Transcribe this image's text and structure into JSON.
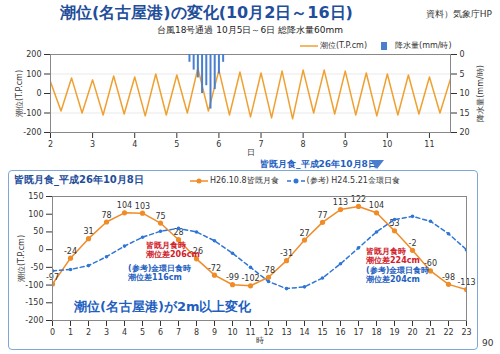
{
  "title": "潮位(名古屋港)の変化(10月2日～16日)",
  "source": "資料）気象庁HP",
  "page_number": "90",
  "chart_data": [
    {
      "type": "line",
      "subtitle": "台風18号通過 10月5日～6日 総降水量60mm",
      "x_label": "日",
      "y_label": "潮位(T.P.cm)",
      "y2_label": "降水量(mm/時)",
      "xlim": [
        2,
        11.5
      ],
      "xticks": [
        2,
        3,
        4,
        5,
        6,
        7,
        8,
        9,
        10,
        11
      ],
      "ylim": [
        -200,
        200
      ],
      "yticks": [
        -200,
        -100,
        0,
        100,
        200
      ],
      "y2lim": [
        20,
        0
      ],
      "y2ticks": [
        0,
        5,
        10,
        15,
        20
      ],
      "grid": true,
      "legend": "top-right",
      "annotations": [
        "皆既月食_平成26年10月8日"
      ],
      "series": [
        {
          "name": "潮位(T.P.cm)",
          "color": "#f0a030",
          "type": "line",
          "x": [
            2,
            2.25,
            2.5,
            2.75,
            3,
            3.25,
            3.5,
            3.75,
            4,
            4.25,
            4.5,
            4.75,
            5,
            5.25,
            5.5,
            5.75,
            6,
            6.25,
            6.5,
            6.75,
            7,
            7.25,
            7.5,
            7.75,
            8,
            8.25,
            8.5,
            8.75,
            9,
            9.25,
            9.5,
            9.75,
            10,
            10.25,
            10.5,
            10.75,
            11,
            11.25,
            11.5
          ],
          "values": [
            60,
            -90,
            80,
            -100,
            70,
            -110,
            90,
            -105,
            85,
            -115,
            100,
            -110,
            95,
            -100,
            130,
            -90,
            120,
            -110,
            110,
            -120,
            105,
            -125,
            115,
            -130,
            120,
            -100,
            120,
            -105,
            115,
            -110,
            105,
            -115,
            100,
            -110,
            95,
            -105,
            85,
            -100,
            75
          ]
        },
        {
          "name": "降水量(mm/時)",
          "color": "#4a7fd0",
          "type": "bar",
          "axis": "y2",
          "x": [
            5.3,
            5.4,
            5.5,
            5.6,
            5.7,
            5.8,
            5.9,
            6.0,
            6.1
          ],
          "values": [
            2,
            4,
            6,
            10,
            8,
            14,
            9,
            5,
            2
          ]
        }
      ]
    },
    {
      "type": "line",
      "title": "皆既月食_平成26年10月8日",
      "x_label": "時",
      "y_label": "潮位(T.P.cm)",
      "x": [
        0,
        1,
        2,
        3,
        4,
        5,
        6,
        7,
        8,
        9,
        10,
        11,
        12,
        13,
        14,
        15,
        16,
        17,
        18,
        19,
        20,
        21,
        22,
        23
      ],
      "xlim": [
        0,
        23
      ],
      "xticks": [
        0,
        1,
        2,
        3,
        4,
        5,
        6,
        7,
        8,
        9,
        10,
        11,
        12,
        13,
        14,
        15,
        16,
        17,
        18,
        19,
        20,
        21,
        22,
        23
      ],
      "ylim": [
        -200,
        150
      ],
      "yticks": [
        -200,
        -150,
        -100,
        -50,
        0,
        50,
        100,
        150
      ],
      "grid": false,
      "legend": "top",
      "annotations": [
        "皆既月食時\n潮位差206cm",
        "(参考)金環日食時\n潮位差116cm",
        "皆既月食時\n潮位差224cm",
        "(参考)金環日食時\n潮位差204cm",
        "潮位(名古屋港)が2m以上変化"
      ],
      "series": [
        {
          "name": "H26.10.8皆既月食",
          "color": "#f08c28",
          "marker": "circle",
          "line_style": "solid",
          "data_labels": true,
          "values": [
            -97,
            -24,
            31,
            78,
            104,
            103,
            75,
            28,
            -26,
            -72,
            -99,
            -102,
            -78,
            -31,
            27,
            77,
            113,
            122,
            104,
            53,
            -2,
            -60,
            -98,
            -113
          ]
        },
        {
          "name": "(参考) H24.5.21金環日食",
          "color": "#2e75d6",
          "marker": "circle",
          "line_style": "dashed",
          "values": [
            -60,
            -56,
            -45,
            -20,
            10,
            35,
            52,
            60,
            50,
            25,
            -10,
            -50,
            -90,
            -110,
            -105,
            -80,
            -40,
            5,
            50,
            85,
            94,
            80,
            45,
            0
          ]
        }
      ]
    }
  ]
}
